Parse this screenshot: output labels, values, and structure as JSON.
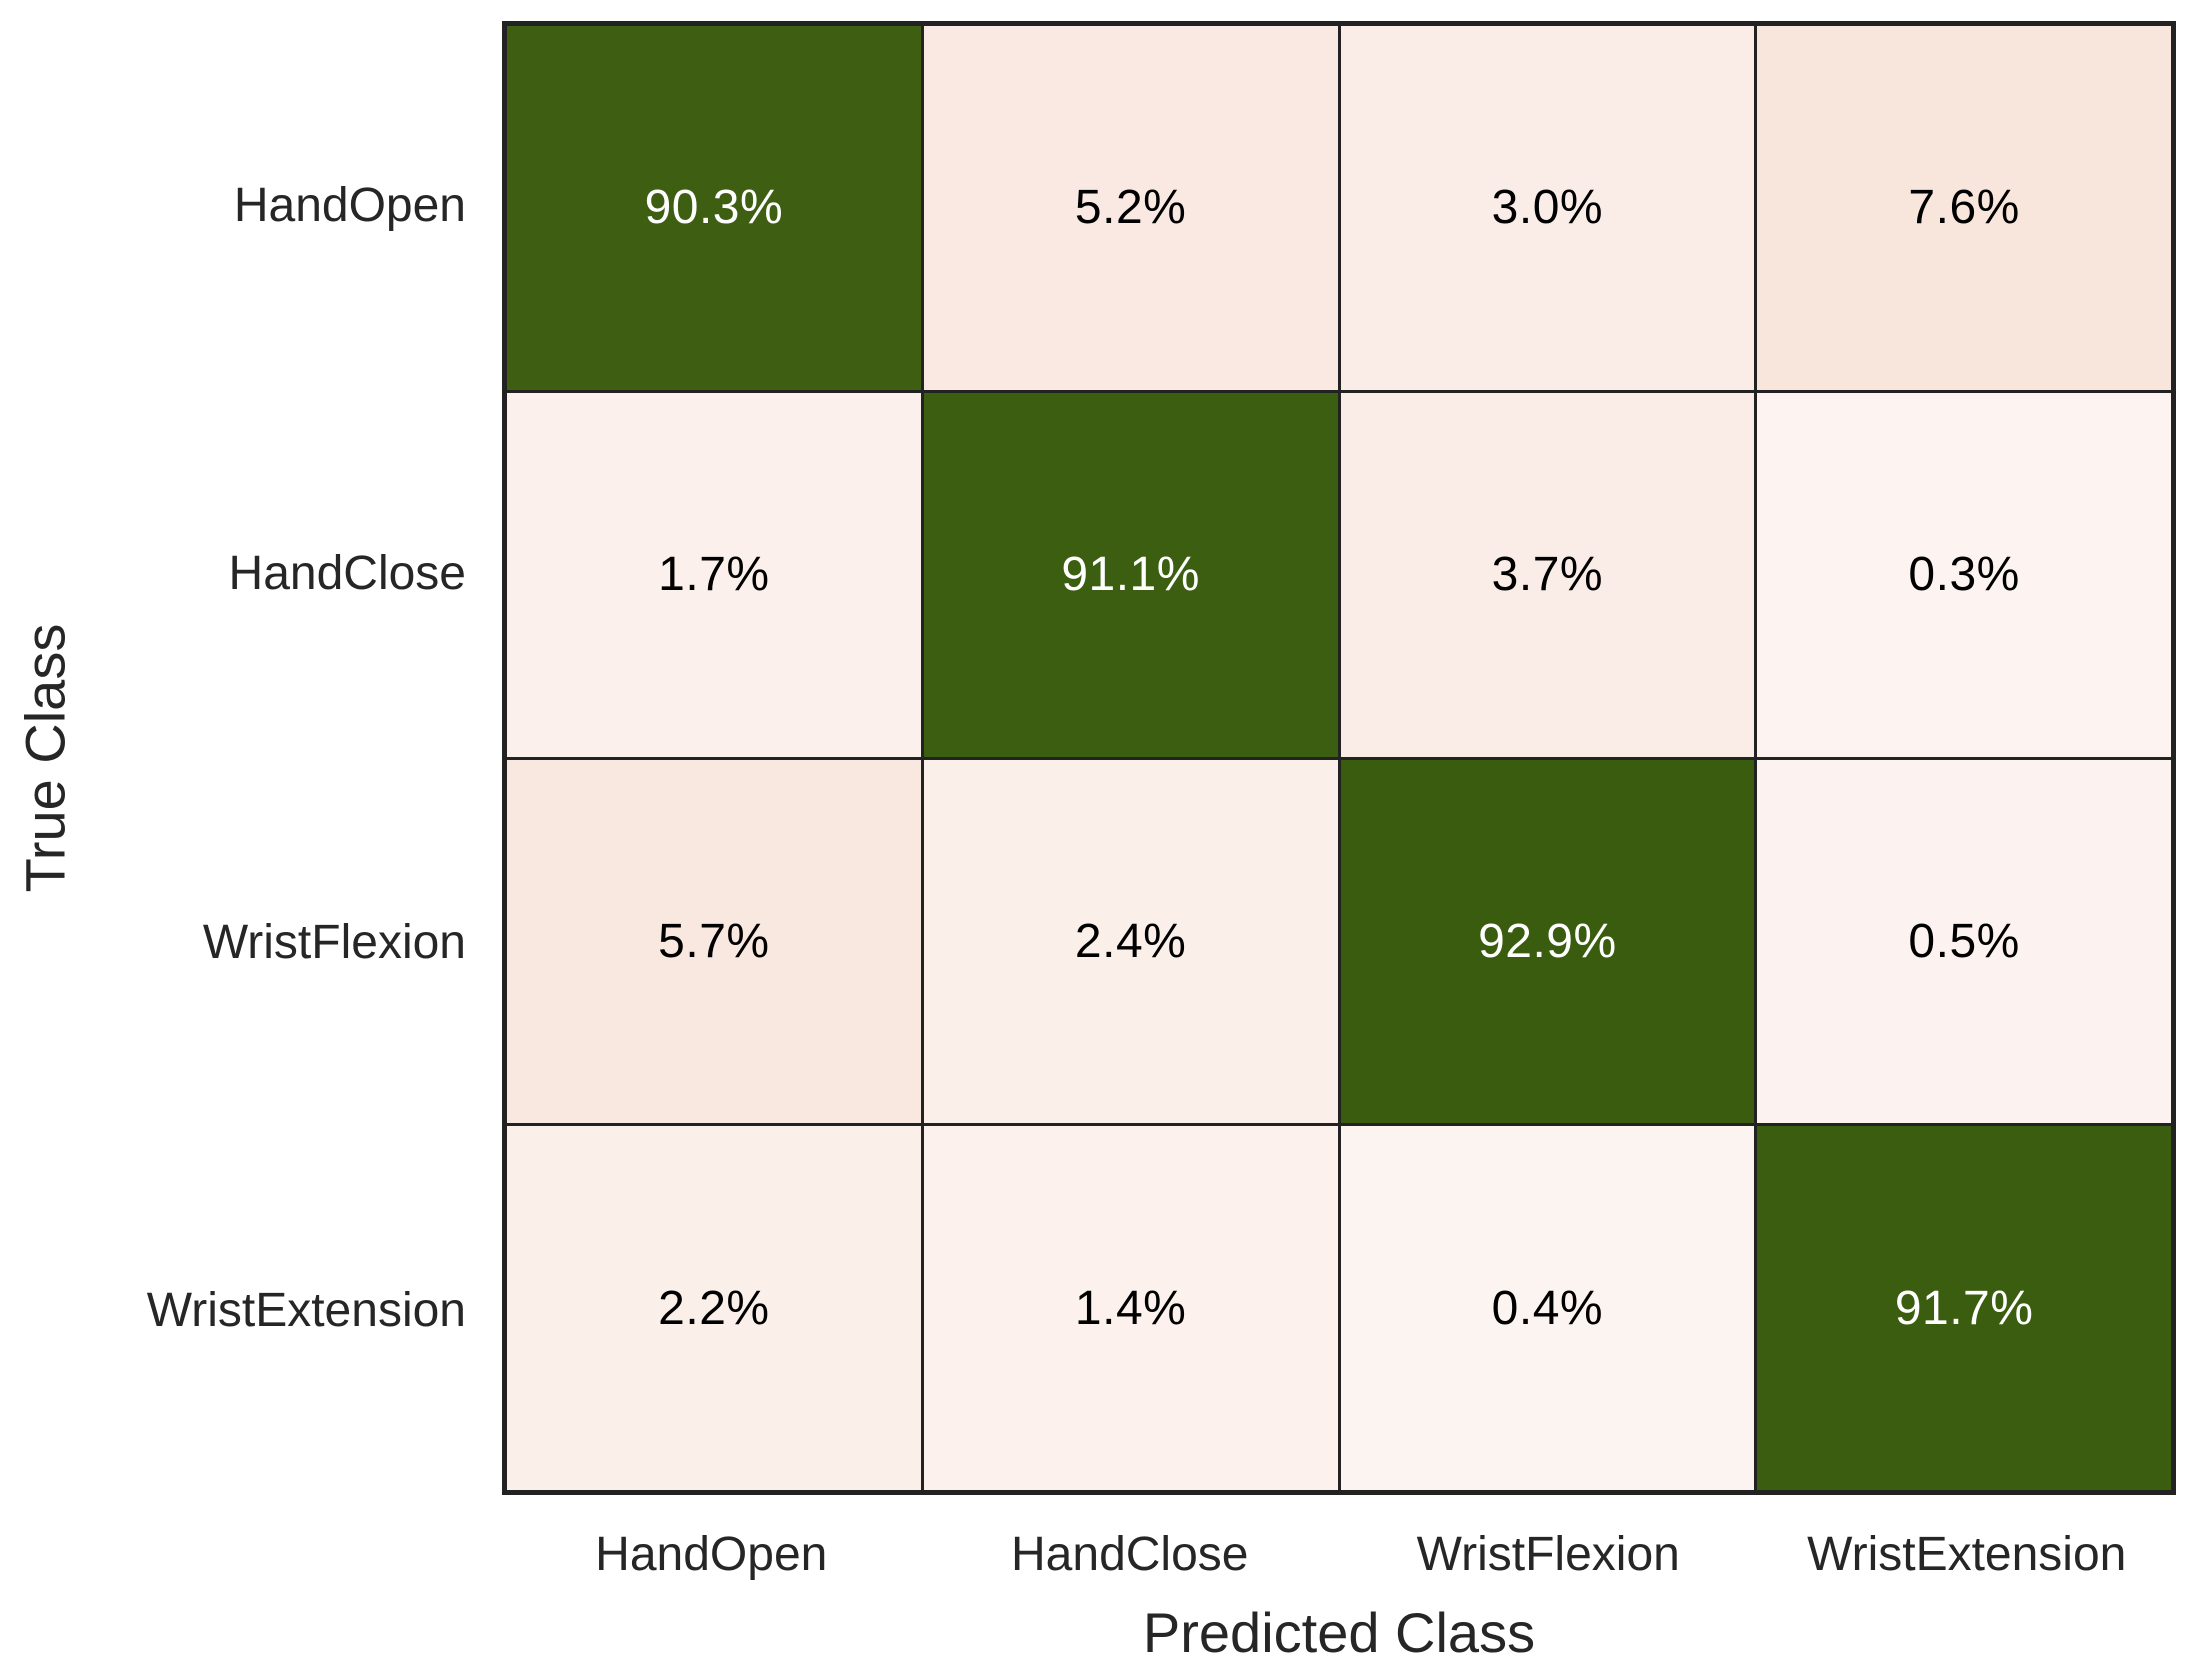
{
  "chart_data": {
    "type": "heatmap",
    "subtype": "confusion-matrix",
    "title": "",
    "xlabel": "Predicted Class",
    "ylabel": "True Class",
    "categories": [
      "HandOpen",
      "HandClose",
      "WristFlexion",
      "WristExtension"
    ],
    "rows_are": "true-class",
    "columns_are": "predicted-class",
    "matrix_percent": [
      [
        90.3,
        5.2,
        3.0,
        7.6
      ],
      [
        1.7,
        91.1,
        3.7,
        0.3
      ],
      [
        5.7,
        2.4,
        92.9,
        0.5
      ],
      [
        2.2,
        1.4,
        0.4,
        91.7
      ]
    ],
    "cell_labels": [
      [
        "90.3%",
        "5.2%",
        "3.0%",
        "7.6%"
      ],
      [
        "1.7%",
        "91.1%",
        "3.7%",
        "0.3%"
      ],
      [
        "5.7%",
        "2.4%",
        "92.9%",
        "0.5%"
      ],
      [
        "2.2%",
        "1.4%",
        "0.4%",
        "91.7%"
      ]
    ],
    "layout": {
      "grid": "off",
      "legend": "none",
      "colorbar": "none"
    },
    "colors": {
      "background": "#ffffff",
      "grid_line": "#222222",
      "diagonal_text": "#ffffff",
      "offdiagonal_text": "#000000",
      "axis_text": "#262626",
      "cell_colors": [
        [
          "#3E5F12",
          "#F9E9E2",
          "#FAEDE8",
          "#F8E6DD"
        ],
        [
          "#FBF0EB",
          "#3C5E10",
          "#FAECE6",
          "#FDF4F1"
        ],
        [
          "#F9E8E0",
          "#FBEFE9",
          "#395C0E",
          "#FCF3F0"
        ],
        [
          "#FBEFEA",
          "#FCF1ED",
          "#FCF4F0",
          "#3B5D0F"
        ]
      ]
    }
  }
}
